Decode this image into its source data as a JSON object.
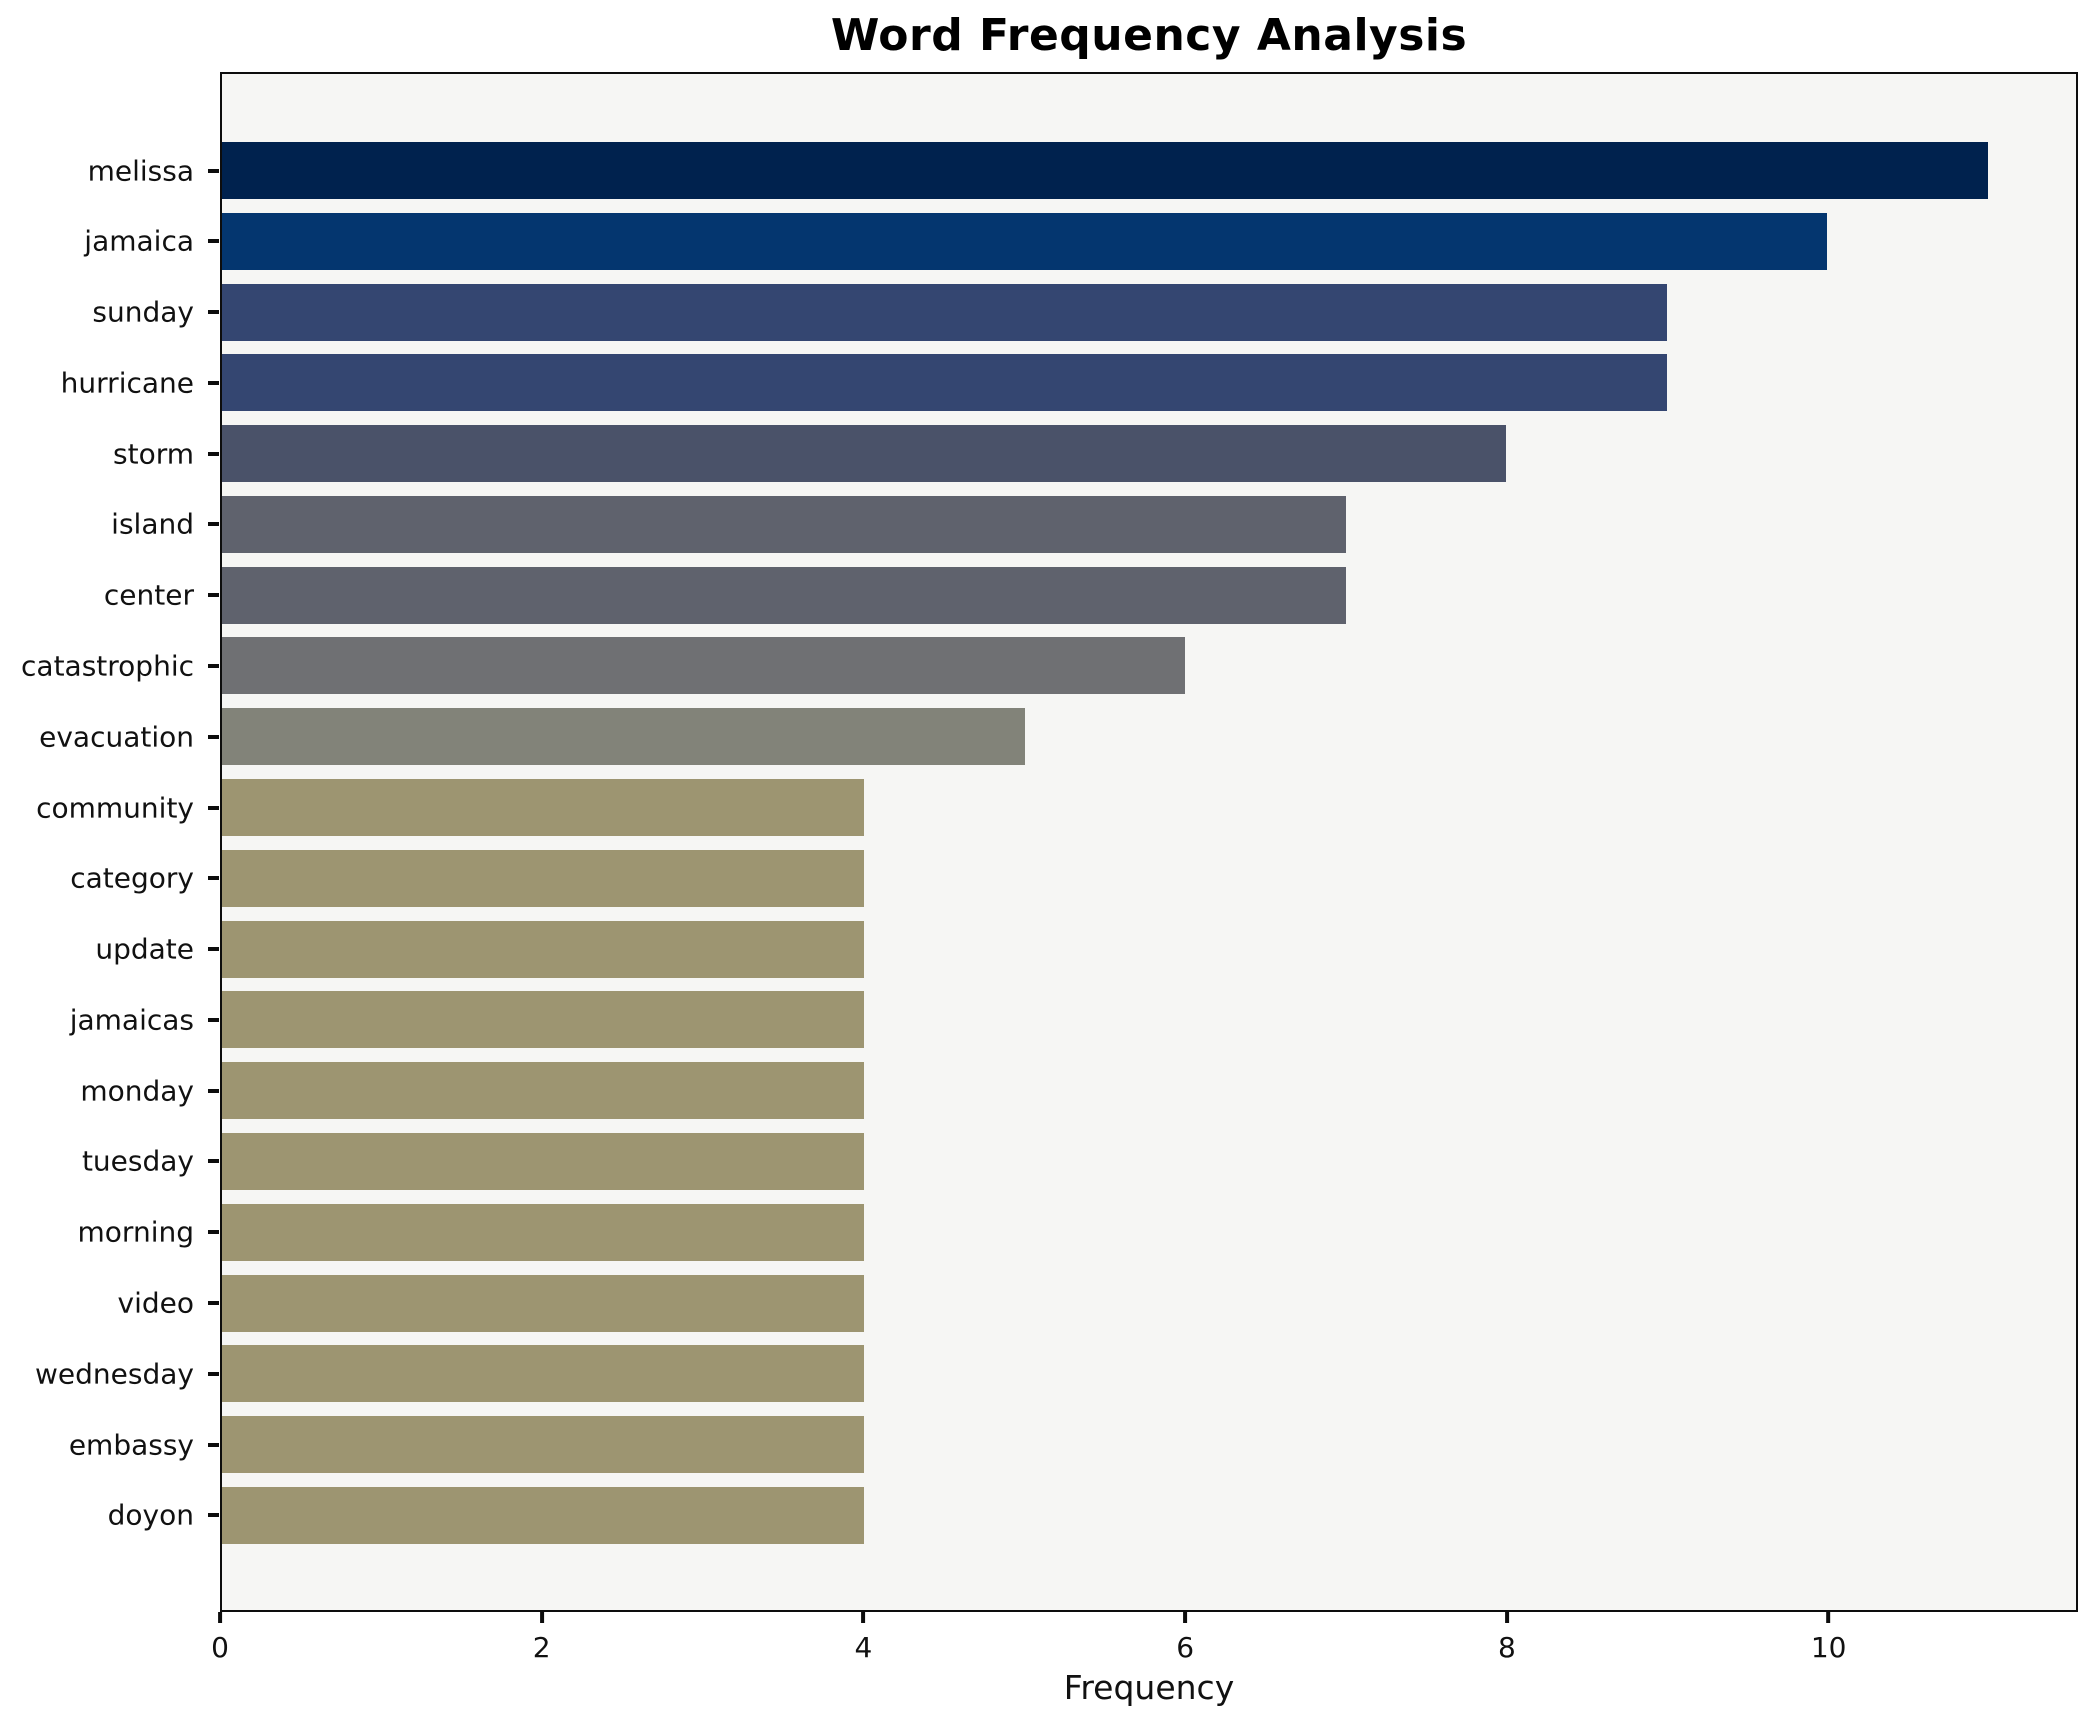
{
  "chart_data": {
    "type": "bar",
    "orientation": "horizontal",
    "title": "Word Frequency Analysis",
    "xlabel": "Frequency",
    "ylabel": "",
    "categories": [
      "melissa",
      "jamaica",
      "sunday",
      "hurricane",
      "storm",
      "island",
      "center",
      "catastrophic",
      "evacuation",
      "community",
      "category",
      "update",
      "jamaicas",
      "monday",
      "tuesday",
      "morning",
      "video",
      "wednesday",
      "embassy",
      "doyon"
    ],
    "values": [
      11,
      10,
      9,
      9,
      8,
      7,
      7,
      6,
      5,
      4,
      4,
      4,
      4,
      4,
      4,
      4,
      4,
      4,
      4,
      4
    ],
    "bar_colors": [
      "#00224e",
      "#04366f",
      "#344671",
      "#344671",
      "#4a5269",
      "#5f626d",
      "#5f626d",
      "#6f7073",
      "#828379",
      "#9d9571",
      "#9d9571",
      "#9d9571",
      "#9d9571",
      "#9d9571",
      "#9d9571",
      "#9d9571",
      "#9d9571",
      "#9d9571",
      "#9d9571",
      "#9d9571"
    ],
    "xlim": [
      0,
      11.55
    ],
    "xticks": [
      0,
      2,
      4,
      6,
      8,
      10
    ],
    "grid": false,
    "legend": false,
    "plot_background": "#f6f6f4",
    "figure_background": "#ffffff",
    "spine_color": "#0d0d0d"
  }
}
